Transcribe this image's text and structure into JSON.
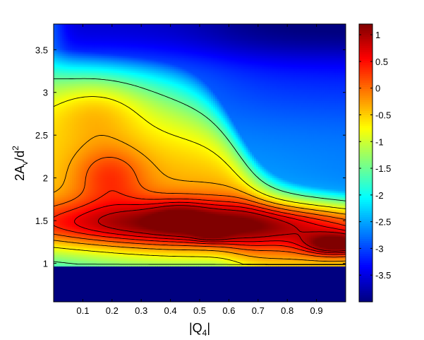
{
  "chart_data": {
    "type": "heatmap",
    "title": "",
    "xlabel": {
      "main": "|Q",
      "sub": "4",
      "tail": "|"
    },
    "ylabel": {
      "main": "2A",
      "sub": "v",
      "mid": "/d",
      "sup": "2"
    },
    "xlim": [
      0,
      1
    ],
    "ylim": [
      0.55,
      3.8
    ],
    "x_ticks": [
      {
        "v": 0.1,
        "label": "0.1"
      },
      {
        "v": 0.2,
        "label": "0.2"
      },
      {
        "v": 0.3,
        "label": "0.3"
      },
      {
        "v": 0.4,
        "label": "0.4"
      },
      {
        "v": 0.5,
        "label": "0.5"
      },
      {
        "v": 0.6,
        "label": "0.6"
      },
      {
        "v": 0.7,
        "label": "0.7"
      },
      {
        "v": 0.8,
        "label": "0.8"
      },
      {
        "v": 0.9,
        "label": "0.9"
      }
    ],
    "y_ticks": [
      {
        "v": 1.0,
        "label": "1"
      },
      {
        "v": 1.5,
        "label": "1.5"
      },
      {
        "v": 2.0,
        "label": "2"
      },
      {
        "v": 2.5,
        "label": "2.5"
      },
      {
        "v": 3.0,
        "label": "3"
      },
      {
        "v": 3.5,
        "label": "3.5"
      }
    ],
    "colorbar": {
      "range": [
        -4.0,
        1.2
      ],
      "colormap": "jet",
      "ticks": [
        {
          "v": 1.0,
          "label": "1"
        },
        {
          "v": 0.5,
          "label": "0.5"
        },
        {
          "v": 0.0,
          "label": "0"
        },
        {
          "v": -0.5,
          "label": "-0.5"
        },
        {
          "v": -1.0,
          "label": "-1"
        },
        {
          "v": -1.5,
          "label": "-1.5"
        },
        {
          "v": -2.0,
          "label": "-2"
        },
        {
          "v": -2.5,
          "label": "-2.5"
        },
        {
          "v": -3.0,
          "label": "-3"
        },
        {
          "v": -3.5,
          "label": "-3.5"
        }
      ]
    },
    "contour_levels": [
      -1.5,
      -0.75,
      -0.3,
      0.05,
      0.35,
      0.6,
      0.85
    ],
    "field_features": [
      {
        "kind": "background",
        "value": -2.7
      },
      {
        "kind": "band",
        "x_range": [
          0,
          1
        ],
        "y_center": 1.45,
        "value": 0.0
      },
      {
        "kind": "peak",
        "x": 0.2,
        "y": 2.02,
        "value": 0.6
      },
      {
        "kind": "peak",
        "x": 0.54,
        "y": 1.33,
        "value": 0.35
      },
      {
        "kind": "peak",
        "x": 0.97,
        "y": 1.22,
        "value": 1.15
      },
      {
        "kind": "floor",
        "below_y": 0.95,
        "value": -4.0
      }
    ]
  }
}
